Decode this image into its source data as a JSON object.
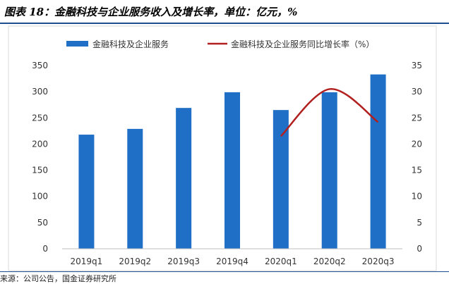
{
  "figure_title": "图表 18：金融科技与企业服务收入及增长率，单位：亿元，%",
  "source_text": "来源：公司公告，国金证券研究所",
  "colors": {
    "bar": "#1f6fc6",
    "line": "#b21f1f",
    "axis": "#bfbfbf",
    "rule": "#1f4e8c"
  },
  "chart_data": {
    "type": "bar",
    "categories": [
      "2019q1",
      "2019q2",
      "2019q3",
      "2019q4",
      "2020q1",
      "2020q2",
      "2020q3"
    ],
    "series": [
      {
        "name": "金融科技及企业服务",
        "type": "bar",
        "axis": "left",
        "values": [
          218,
          229,
          269,
          299,
          265,
          299,
          333
        ]
      },
      {
        "name": "金融科技及企业服务同比增长率（%）",
        "type": "line",
        "axis": "right",
        "x": [
          "2020q1",
          "2020q2",
          "2020q3"
        ],
        "values": [
          21.5,
          30.5,
          24.2
        ]
      }
    ],
    "ylim": [
      0,
      350
    ],
    "y_ticks": [
      0,
      50,
      100,
      150,
      200,
      250,
      300,
      350
    ],
    "y2lim": [
      0,
      35
    ],
    "y2_ticks": [
      0,
      5,
      10,
      15,
      20,
      25,
      30,
      35
    ],
    "grid": false,
    "legend_position": "top"
  }
}
